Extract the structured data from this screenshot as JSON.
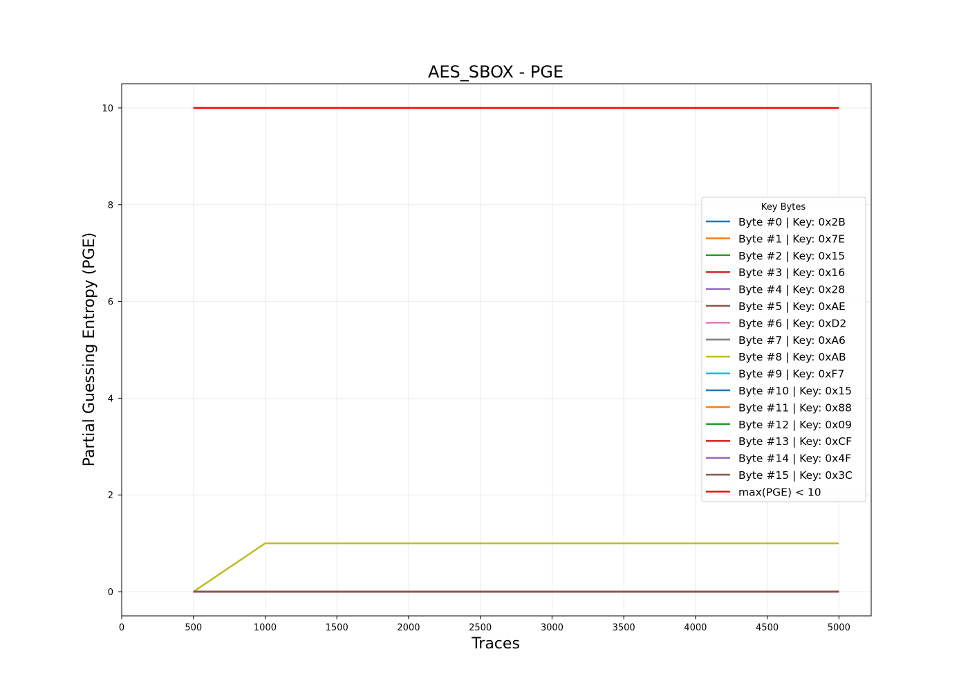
{
  "chart_data": {
    "type": "line",
    "title": "AES_SBOX - PGE",
    "xlabel": "Traces",
    "ylabel": "Partial Guessing Entropy (PGE)",
    "xlim": [
      0,
      5225
    ],
    "ylim": [
      -0.5,
      10.5
    ],
    "xticks": [
      0,
      500,
      1000,
      1500,
      2000,
      2500,
      3000,
      3500,
      4000,
      4500,
      5000
    ],
    "yticks": [
      0,
      2,
      4,
      6,
      8,
      10
    ],
    "grid": true,
    "legend": {
      "title": "Key Bytes",
      "placement": "center-right"
    },
    "x": [
      500,
      1000,
      1500,
      2000,
      2500,
      3000,
      3500,
      4000,
      4500,
      5000
    ],
    "series": [
      {
        "name": "Byte #0 | Key: 0x2B",
        "color": "#1f77b4",
        "values": [
          0,
          0,
          0,
          0,
          0,
          0,
          0,
          0,
          0,
          0
        ]
      },
      {
        "name": "Byte #1 | Key: 0x7E",
        "color": "#ff7f0e",
        "values": [
          0,
          0,
          0,
          0,
          0,
          0,
          0,
          0,
          0,
          0
        ]
      },
      {
        "name": "Byte #2 | Key: 0x15",
        "color": "#2ca02c",
        "values": [
          0,
          0,
          0,
          0,
          0,
          0,
          0,
          0,
          0,
          0
        ]
      },
      {
        "name": "Byte #3 | Key: 0x16",
        "color": "#d62728",
        "values": [
          0,
          0,
          0,
          0,
          0,
          0,
          0,
          0,
          0,
          0
        ]
      },
      {
        "name": "Byte #4 | Key: 0x28",
        "color": "#9467bd",
        "values": [
          0,
          0,
          0,
          0,
          0,
          0,
          0,
          0,
          0,
          0
        ]
      },
      {
        "name": "Byte #5 | Key: 0xAE",
        "color": "#8c564b",
        "values": [
          0,
          0,
          0,
          0,
          0,
          0,
          0,
          0,
          0,
          0
        ]
      },
      {
        "name": "Byte #6 | Key: 0xD2",
        "color": "#e377c2",
        "values": [
          0,
          0,
          0,
          0,
          0,
          0,
          0,
          0,
          0,
          0
        ]
      },
      {
        "name": "Byte #7 | Key: 0xA6",
        "color": "#7f7f7f",
        "values": [
          0,
          0,
          0,
          0,
          0,
          0,
          0,
          0,
          0,
          0
        ]
      },
      {
        "name": "Byte #8 | Key: 0xAB",
        "color": "#bcbd22",
        "values": [
          0,
          1,
          1,
          1,
          1,
          1,
          1,
          1,
          1,
          1
        ]
      },
      {
        "name": "Byte #9 | Key: 0xF7",
        "color": "#17becf",
        "values": [
          0,
          0,
          0,
          0,
          0,
          0,
          0,
          0,
          0,
          0
        ]
      },
      {
        "name": "Byte #10 | Key: 0x15",
        "color": "#1f77b4",
        "values": [
          0,
          0,
          0,
          0,
          0,
          0,
          0,
          0,
          0,
          0
        ]
      },
      {
        "name": "Byte #11 | Key: 0x88",
        "color": "#ff7f0e",
        "values": [
          0,
          0,
          0,
          0,
          0,
          0,
          0,
          0,
          0,
          0
        ]
      },
      {
        "name": "Byte #12 | Key: 0x09",
        "color": "#2ca02c",
        "values": [
          0,
          0,
          0,
          0,
          0,
          0,
          0,
          0,
          0,
          0
        ]
      },
      {
        "name": "Byte #13 | Key: 0xCF",
        "color": "#d62728",
        "values": [
          0,
          0,
          0,
          0,
          0,
          0,
          0,
          0,
          0,
          0
        ]
      },
      {
        "name": "Byte #14 | Key: 0x4F",
        "color": "#9467bd",
        "values": [
          0,
          0,
          0,
          0,
          0,
          0,
          0,
          0,
          0,
          0
        ]
      },
      {
        "name": "Byte #15 | Key: 0x3C",
        "color": "#8c564b",
        "values": [
          0,
          0,
          0,
          0,
          0,
          0,
          0,
          0,
          0,
          0
        ]
      },
      {
        "name": "max(PGE) < 10",
        "color": "#ff0000",
        "values": [
          10,
          10,
          10,
          10,
          10,
          10,
          10,
          10,
          10,
          10
        ]
      }
    ]
  }
}
